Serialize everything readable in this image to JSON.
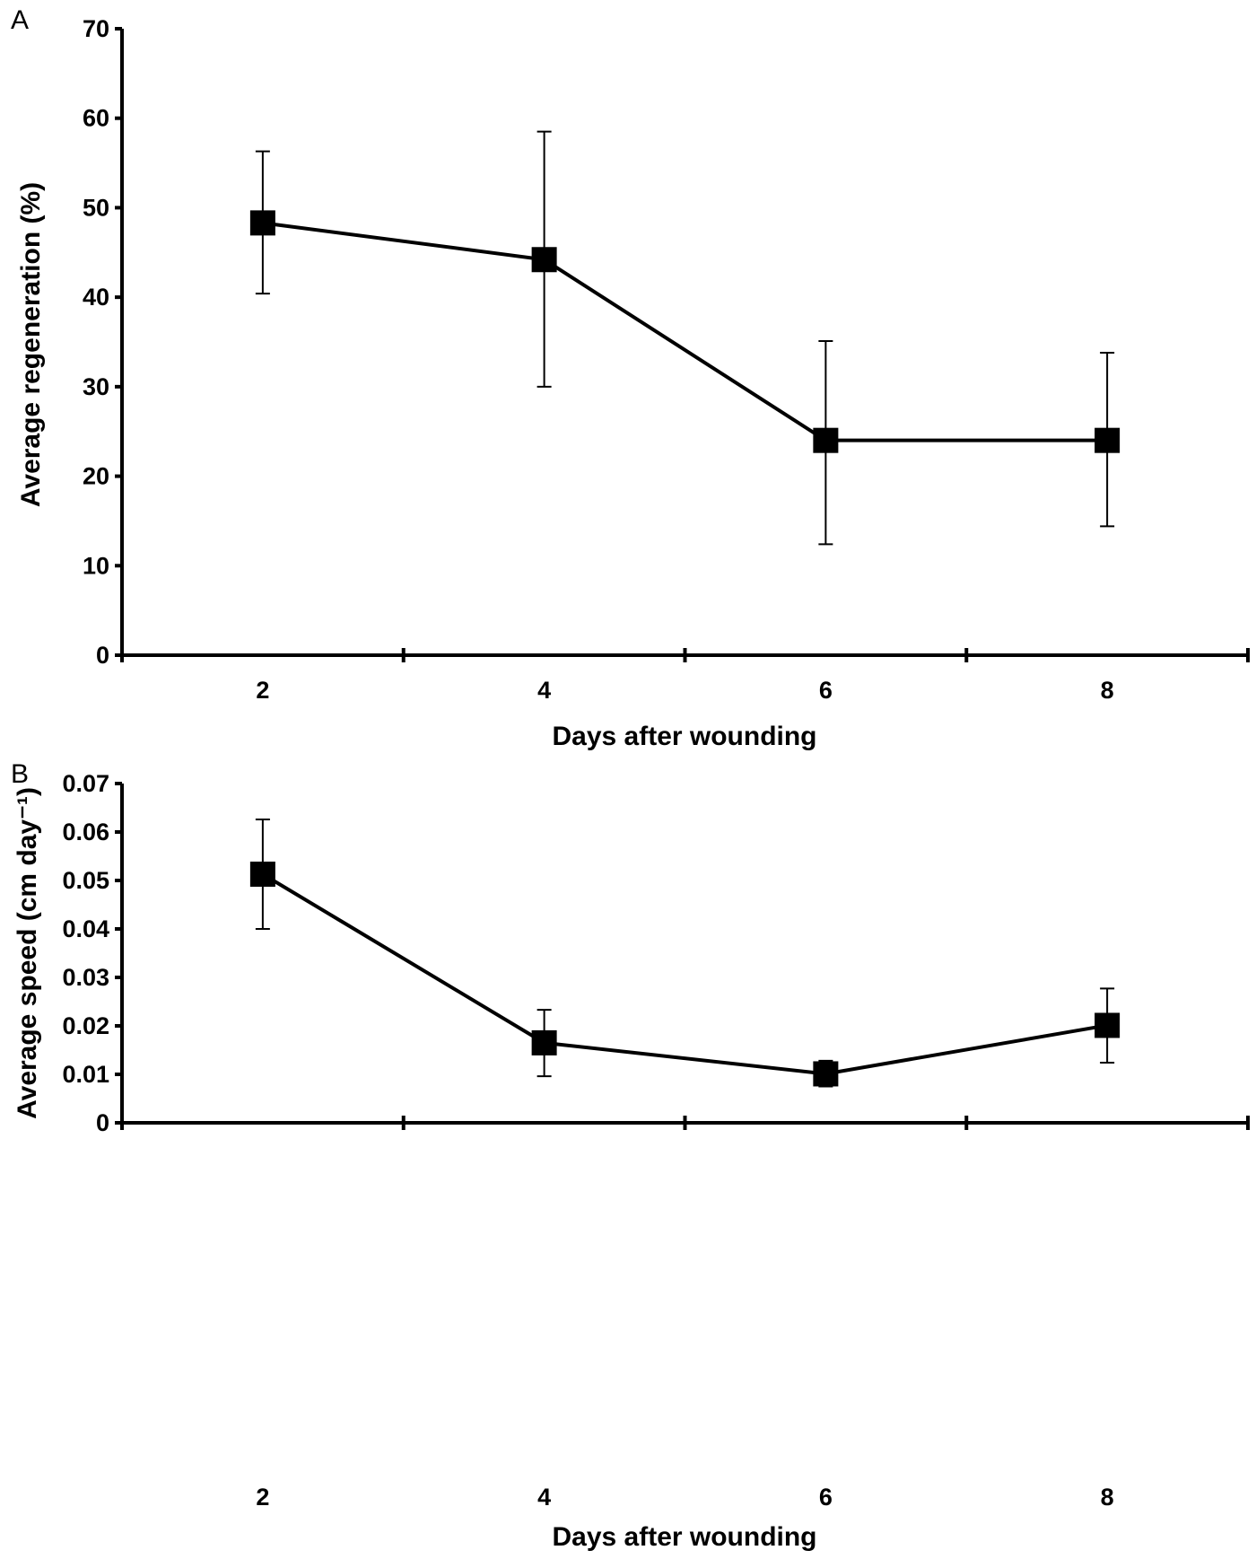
{
  "chart_data": [
    {
      "panel_label": "A",
      "type": "line",
      "categories": [
        "2",
        "4",
        "6",
        "8"
      ],
      "values": [
        48.3,
        44.2,
        24.0,
        24.0
      ],
      "error_low": [
        40.4,
        30.0,
        12.4,
        14.4
      ],
      "error_high": [
        56.3,
        58.5,
        35.1,
        33.8
      ],
      "xlabel": "Days after wounding",
      "ylabel": "Average regeneration (%)",
      "ylim": [
        0,
        70
      ],
      "yticks": [
        "0",
        "10",
        "20",
        "30",
        "40",
        "50",
        "60",
        "70"
      ],
      "grid": false,
      "marker": "square",
      "color": "#000000"
    },
    {
      "panel_label": "B",
      "type": "line",
      "categories": [
        "2",
        "4",
        "6",
        "8"
      ],
      "values": [
        0.0513,
        0.0165,
        0.0101,
        0.0201
      ],
      "error_low": [
        0.04,
        0.0096,
        0.0075,
        0.0124
      ],
      "error_high": [
        0.0626,
        0.0233,
        0.0128,
        0.0277
      ],
      "xlabel": "Days after wounding",
      "ylabel": "Average speed (cm day⁻¹)",
      "ylim": [
        0,
        0.07
      ],
      "yticks": [
        "0",
        "0.01",
        "0.02",
        "0.03",
        "0.04",
        "0.05",
        "0.06",
        "0.07"
      ],
      "grid": false,
      "marker": "square",
      "color": "#000000"
    }
  ]
}
